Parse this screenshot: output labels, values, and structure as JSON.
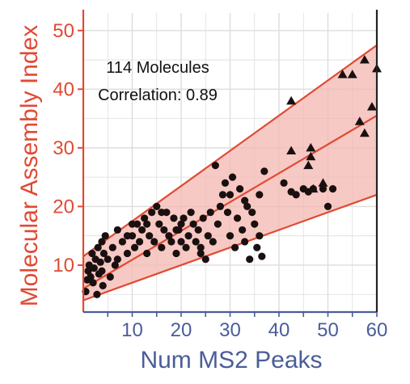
{
  "chart_data": {
    "type": "scatter",
    "title": "",
    "xlabel": "Num MS2 Peaks",
    "ylabel": "Molecular Assembly Index",
    "xlim": [
      0,
      60
    ],
    "ylim": [
      2,
      53
    ],
    "x_ticks": [
      "10",
      "20",
      "30",
      "40",
      "50",
      "60"
    ],
    "y_ticks": [
      "10",
      "20",
      "30",
      "40",
      "50"
    ],
    "x_tick_values": [
      10,
      20,
      30,
      40,
      50,
      60
    ],
    "y_tick_values": [
      10,
      20,
      30,
      40,
      50
    ],
    "grid": true,
    "annotations": [
      "114 Molecules",
      "Correlation:  0.89"
    ],
    "colors": {
      "y_axis": "#e04a33",
      "x_axis": "#4a5d9a",
      "band_fill": "#f4b7b0",
      "band_line": "#e04a33",
      "points": "#1a1010",
      "grid": "#dddddd"
    },
    "fit": {
      "center": [
        [
          0,
          6
        ],
        [
          60,
          35.5
        ]
      ],
      "upper": [
        [
          0,
          11.5
        ],
        [
          60,
          47.5
        ]
      ],
      "lower": [
        [
          0,
          4
        ],
        [
          60,
          22
        ]
      ]
    },
    "series": [
      {
        "marker": "circle",
        "points": [
          [
            0.5,
            5.5
          ],
          [
            0.8,
            7.5
          ],
          [
            1,
            9
          ],
          [
            1.2,
            10
          ],
          [
            1.5,
            8
          ],
          [
            1.8,
            12
          ],
          [
            2,
            7
          ],
          [
            2.2,
            9.5
          ],
          [
            2.5,
            11
          ],
          [
            2.8,
            5
          ],
          [
            3,
            13
          ],
          [
            3.2,
            8.5
          ],
          [
            3.5,
            10.5
          ],
          [
            3.8,
            9
          ],
          [
            4,
            6.5
          ],
          [
            4.2,
            12
          ],
          [
            4.5,
            15
          ],
          [
            5,
            11
          ],
          [
            5.5,
            8
          ],
          [
            6,
            13
          ],
          [
            6.5,
            10
          ],
          [
            7,
            16
          ],
          [
            8,
            14
          ],
          [
            9,
            12
          ],
          [
            10,
            15
          ],
          [
            10.5,
            13
          ],
          [
            11,
            17
          ],
          [
            11.5,
            14
          ],
          [
            12,
            16
          ],
          [
            12.5,
            18
          ],
          [
            13,
            12
          ],
          [
            13.5,
            15
          ],
          [
            14,
            19
          ],
          [
            14.5,
            14
          ],
          [
            15,
            20
          ],
          [
            15.5,
            17
          ],
          [
            16,
            13
          ],
          [
            16.5,
            16
          ],
          [
            17,
            19
          ],
          [
            17.5,
            15
          ],
          [
            18,
            14
          ],
          [
            18.5,
            18
          ],
          [
            19,
            12
          ],
          [
            19.5,
            16
          ],
          [
            20,
            14
          ],
          [
            20.5,
            18
          ],
          [
            21,
            13
          ],
          [
            21.5,
            15
          ],
          [
            22,
            19
          ],
          [
            22.5,
            17
          ],
          [
            23,
            14
          ],
          [
            23.5,
            16
          ],
          [
            24,
            13
          ],
          [
            24.5,
            18
          ],
          [
            25,
            11
          ],
          [
            25.5,
            15
          ],
          [
            26,
            19
          ],
          [
            26.5,
            14
          ],
          [
            27,
            27
          ],
          [
            27.5,
            17
          ],
          [
            28,
            20
          ],
          [
            28.5,
            22
          ],
          [
            29,
            24
          ],
          [
            29.5,
            19
          ],
          [
            30,
            15
          ],
          [
            30.5,
            25
          ],
          [
            31,
            13
          ],
          [
            31.5,
            18
          ],
          [
            32,
            23
          ],
          [
            32.5,
            16
          ],
          [
            33,
            14
          ],
          [
            33.5,
            20
          ],
          [
            34,
            11
          ],
          [
            34.5,
            19
          ],
          [
            35,
            17
          ],
          [
            35.5,
            13
          ],
          [
            36,
            15
          ],
          [
            36.5,
            11.5
          ],
          [
            37,
            26
          ],
          [
            33,
            21
          ],
          [
            24,
            12
          ],
          [
            19,
            16
          ],
          [
            16,
            19
          ],
          [
            13,
            17
          ],
          [
            9,
            15
          ],
          [
            7,
            11
          ],
          [
            3.8,
            14
          ],
          [
            36,
            22
          ],
          [
            41,
            24
          ],
          [
            42.5,
            22.5
          ],
          [
            43.5,
            22
          ],
          [
            45,
            23
          ],
          [
            46,
            22.5
          ],
          [
            47,
            23
          ],
          [
            49,
            23
          ],
          [
            51,
            23
          ],
          [
            50,
            20
          ],
          [
            30,
            22
          ],
          [
            20,
            17
          ],
          [
            10,
            17
          ]
        ]
      },
      {
        "marker": "triangle",
        "points": [
          [
            42.5,
            38
          ],
          [
            42.5,
            29.5
          ],
          [
            46,
            27
          ],
          [
            46.5,
            28.5
          ],
          [
            46.5,
            30
          ],
          [
            47,
            23
          ],
          [
            49,
            24
          ],
          [
            53,
            42.5
          ],
          [
            55,
            42.5
          ],
          [
            56.5,
            34.5
          ],
          [
            57.5,
            32.5
          ],
          [
            57.5,
            45
          ],
          [
            59,
            37
          ],
          [
            60,
            43.5
          ]
        ]
      }
    ]
  }
}
